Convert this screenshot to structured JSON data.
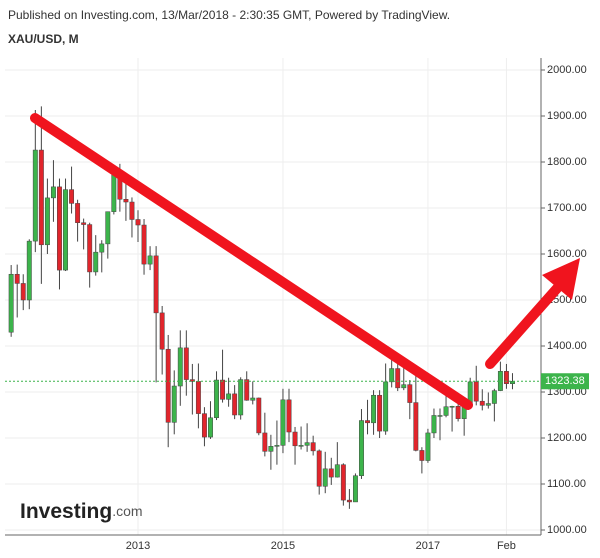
{
  "header": {
    "published": "Published on Investing.com, 13/Mar/2018 - 2:30:35 GMT, Powered by TradingView.",
    "logo": "Investing",
    "logo_suffix": ".com"
  },
  "chart_data": {
    "type": "candlestick",
    "title": "XAU/USD, M",
    "categories": [
      null,
      null,
      null,
      null,
      null,
      null,
      null,
      null,
      null,
      null,
      null,
      null,
      null,
      null,
      null,
      null,
      null,
      null,
      null,
      null,
      null,
      "2013",
      null,
      null,
      null,
      null,
      null,
      null,
      null,
      null,
      null,
      null,
      null,
      null,
      null,
      null,
      null,
      null,
      null,
      null,
      null,
      null,
      null,
      null,
      null,
      "2015",
      null,
      null,
      null,
      null,
      null,
      null,
      null,
      null,
      null,
      null,
      null,
      null,
      null,
      null,
      null,
      null,
      null,
      null,
      null,
      null,
      null,
      null,
      null,
      "2017",
      null,
      null,
      null,
      null,
      null,
      null,
      null,
      null,
      null,
      null,
      null,
      null,
      "Feb",
      null
    ],
    "open": [
      1430,
      1556,
      1536,
      1500,
      1628,
      1826,
      1620,
      1722,
      1746,
      1565,
      1740,
      1710,
      1668,
      1664,
      1561,
      1604,
      1622,
      1692,
      1772,
      1719,
      1713,
      1675,
      1663,
      1578,
      1596,
      1472,
      1393,
      1234,
      1313,
      1396,
      1327,
      1323,
      1253,
      1202,
      1244,
      1326,
      1284,
      1296,
      1250,
      1327,
      1282,
      1287,
      1211,
      1171,
      1182,
      1184,
      1283,
      1213,
      1183,
      1184,
      1190,
      1172,
      1095,
      1133,
      1115,
      1142,
      1065,
      1061,
      1118,
      1238,
      1233,
      1293,
      1215,
      1322,
      1351,
      1309,
      1316,
      1277,
      1173,
      1151,
      1211,
      1249,
      1249,
      1268,
      1269,
      1242,
      1269,
      1322,
      1280,
      1271,
      1275,
      1303,
      1345,
      1318
    ],
    "high": [
      1576,
      1577,
      1556,
      1632,
      1913,
      1921,
      1764,
      1804,
      1764,
      1764,
      1790,
      1718,
      1677,
      1668,
      1641,
      1630,
      1692,
      1790,
      1796,
      1754,
      1723,
      1695,
      1676,
      1617,
      1617,
      1487,
      1424,
      1347,
      1434,
      1434,
      1361,
      1362,
      1267,
      1280,
      1345,
      1392,
      1331,
      1315,
      1332,
      1345,
      1323,
      1288,
      1255,
      1207,
      1238,
      1307,
      1307,
      1224,
      1225,
      1232,
      1205,
      1175,
      1170,
      1157,
      1191,
      1145,
      1089,
      1123,
      1263,
      1283,
      1304,
      1304,
      1362,
      1375,
      1367,
      1353,
      1326,
      1338,
      1180,
      1220,
      1264,
      1264,
      1296,
      1270,
      1296,
      1270,
      1331,
      1357,
      1306,
      1299,
      1307,
      1366,
      1361,
      1341
    ],
    "low": [
      1420,
      1462,
      1478,
      1480,
      1604,
      1535,
      1600,
      1670,
      1523,
      1563,
      1688,
      1627,
      1610,
      1527,
      1553,
      1560,
      1590,
      1686,
      1692,
      1672,
      1636,
      1626,
      1555,
      1565,
      1321,
      1338,
      1180,
      1208,
      1270,
      1292,
      1251,
      1221,
      1182,
      1198,
      1239,
      1277,
      1268,
      1241,
      1240,
      1281,
      1273,
      1206,
      1160,
      1131,
      1142,
      1167,
      1191,
      1142,
      1175,
      1170,
      1162,
      1077,
      1080,
      1098,
      1114,
      1053,
      1046,
      1061,
      1111,
      1208,
      1207,
      1200,
      1207,
      1310,
      1302,
      1304,
      1241,
      1171,
      1123,
      1146,
      1200,
      1195,
      1245,
      1214,
      1236,
      1205,
      1265,
      1271,
      1260,
      1264,
      1236,
      1302,
      1307,
      1306
    ],
    "close": [
      1556,
      1536,
      1500,
      1628,
      1826,
      1620,
      1722,
      1746,
      1565,
      1740,
      1710,
      1668,
      1664,
      1561,
      1604,
      1622,
      1692,
      1772,
      1719,
      1713,
      1675,
      1663,
      1578,
      1596,
      1472,
      1393,
      1234,
      1313,
      1396,
      1327,
      1323,
      1253,
      1202,
      1244,
      1326,
      1284,
      1296,
      1250,
      1327,
      1282,
      1287,
      1211,
      1171,
      1182,
      1184,
      1283,
      1213,
      1183,
      1184,
      1190,
      1172,
      1095,
      1133,
      1115,
      1142,
      1065,
      1061,
      1118,
      1238,
      1233,
      1293,
      1215,
      1322,
      1351,
      1309,
      1316,
      1277,
      1173,
      1151,
      1211,
      1249,
      1249,
      1268,
      1269,
      1242,
      1269,
      1322,
      1280,
      1271,
      1275,
      1303,
      1345,
      1318,
      1323.38
    ],
    "up_color": "#3cb44b",
    "down_color": "#e1252c",
    "grid": true,
    "ylim": [
      1000,
      2000
    ],
    "yticks": [
      {
        "value": 1000,
        "label": "1000.00"
      },
      {
        "value": 1100,
        "label": "1100.00"
      },
      {
        "value": 1200,
        "label": "1200.00"
      },
      {
        "value": 1300,
        "label": "1300.00"
      },
      {
        "value": 1400,
        "label": "1400.00"
      },
      {
        "value": 1500,
        "label": "1500.00"
      },
      {
        "value": 1600,
        "label": "1600.00"
      },
      {
        "value": 1700,
        "label": "1700.00"
      },
      {
        "value": 1800,
        "label": "1800.00"
      },
      {
        "value": 1900,
        "label": "1900.00"
      },
      {
        "value": 2000,
        "label": "2000.00"
      }
    ]
  }
}
